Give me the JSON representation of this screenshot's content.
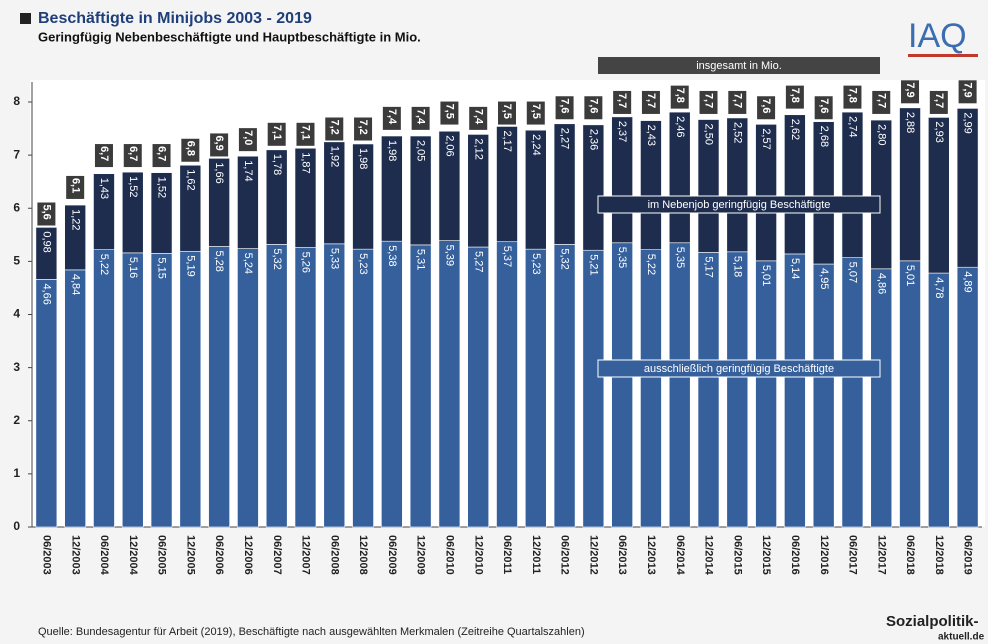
{
  "chart_data": {
    "type": "bar",
    "stacked": true,
    "title": "Beschäftigte in Minijobs 2003 - 2019",
    "subtitle": "Geringfügig Nebenbeschäftigte und Hauptbeschäftigte in Mio.",
    "source": "Quelle: Bundesagentur für Arbeit (2019), Beschäftigte nach ausgewählten Merkmalen (Zeitreihe Quartalszahlen)",
    "logos": [
      "IAQ",
      "Sozialpolitik-",
      "aktuell.de"
    ],
    "categories": [
      "06/2003",
      "12/2003",
      "06/2004",
      "12/2004",
      "06/2005",
      "12/2005",
      "06/2006",
      "12/2006",
      "06/2007",
      "12/2007",
      "06/2008",
      "12/2008",
      "06/2009",
      "12/2009",
      "06/2010",
      "12/2010",
      "06/2011",
      "12/2011",
      "06/2012",
      "12/2012",
      "06/2013",
      "12/2013",
      "06/2014",
      "12/2014",
      "06/2015",
      "12/2015",
      "06/2016",
      "12/2016",
      "06/2017",
      "12/2017",
      "06/2018",
      "12/2018",
      "06/2019"
    ],
    "series": [
      {
        "name": "ausschließlich geringfügig Beschäftigte",
        "color": "#35609c",
        "values": [
          4.66,
          4.84,
          5.22,
          5.16,
          5.15,
          5.19,
          5.28,
          5.24,
          5.32,
          5.26,
          5.33,
          5.23,
          5.38,
          5.31,
          5.39,
          5.27,
          5.37,
          5.23,
          5.32,
          5.21,
          5.35,
          5.22,
          5.35,
          5.17,
          5.18,
          5.01,
          5.14,
          4.95,
          5.07,
          4.86,
          5.01,
          4.78,
          4.89
        ],
        "value_labels": [
          "4,66",
          "4,84",
          "5,22",
          "5,16",
          "5,15",
          "5,19",
          "5,28",
          "5,24",
          "5,32",
          "5,26",
          "5,33",
          "5,23",
          "5,38",
          "5,31",
          "5,39",
          "5,27",
          "5,37",
          "5,23",
          "5,32",
          "5,21",
          "5,35",
          "5,22",
          "5,35",
          "5,17",
          "5,18",
          "5,01",
          "5,14",
          "4,95",
          "5,07",
          "4,86",
          "5,01",
          "4,78",
          "4,89"
        ]
      },
      {
        "name": "im Nebenjob geringfügig Beschäftigte",
        "color": "#1e2d4e",
        "values": [
          0.98,
          1.22,
          1.43,
          1.52,
          1.52,
          1.62,
          1.66,
          1.74,
          1.78,
          1.87,
          1.92,
          1.98,
          1.98,
          2.05,
          2.06,
          2.12,
          2.17,
          2.24,
          2.27,
          2.36,
          2.37,
          2.43,
          2.46,
          2.5,
          2.52,
          2.57,
          2.62,
          2.68,
          2.74,
          2.8,
          2.88,
          2.93,
          2.99
        ],
        "value_labels": [
          "0,98",
          "1,22",
          "1,43",
          "1,52",
          "1,52",
          "1,62",
          "1,66",
          "1,74",
          "1,78",
          "1,87",
          "1,92",
          "1,98",
          "1,98",
          "2,05",
          "2,06",
          "2,12",
          "2,17",
          "2,24",
          "2,27",
          "2,36",
          "2,37",
          "2,43",
          "2,46",
          "2,50",
          "2,52",
          "2,57",
          "2,62",
          "2,68",
          "2,74",
          "2,80",
          "2,88",
          "2,93",
          "2,99"
        ]
      }
    ],
    "totals": {
      "name": "insgesamt in Mio.",
      "color": "#3b3b3b",
      "values": [
        5.6,
        6.1,
        6.7,
        6.7,
        6.7,
        6.8,
        6.9,
        7.0,
        7.1,
        7.1,
        7.2,
        7.2,
        7.4,
        7.4,
        7.5,
        7.4,
        7.5,
        7.5,
        7.6,
        7.6,
        7.7,
        7.7,
        7.8,
        7.7,
        7.7,
        7.6,
        7.8,
        7.6,
        7.8,
        7.7,
        7.9,
        7.7,
        7.9
      ],
      "value_labels": [
        "5,6",
        "6,1",
        "6,7",
        "6,7",
        "6,7",
        "6,8",
        "6,9",
        "7,0",
        "7,1",
        "7,1",
        "7,2",
        "7,2",
        "7,4",
        "7,4",
        "7,5",
        "7,4",
        "7,5",
        "7,5",
        "7,6",
        "7,6",
        "7,7",
        "7,7",
        "7,8",
        "7,7",
        "7,7",
        "7,6",
        "7,8",
        "7,6",
        "7,8",
        "7,7",
        "7,9",
        "7,7",
        "7,9"
      ]
    },
    "ylim": [
      0,
      8
    ],
    "yticks": [
      0,
      1,
      2,
      3,
      4,
      5,
      6,
      7,
      8
    ]
  }
}
